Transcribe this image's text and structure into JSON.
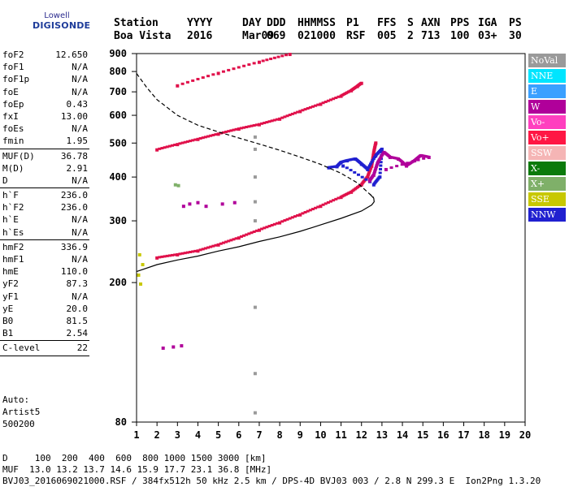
{
  "logo": {
    "line1": "Lowell",
    "line2": "DIGISONDE"
  },
  "header": {
    "cols": [
      {
        "label": "Station",
        "value": "Boa Vista"
      },
      {
        "label": "YYYY",
        "value": "2016"
      },
      {
        "label": "DAY",
        "value": "Mar09"
      },
      {
        "label": "DDD",
        "value": "069"
      },
      {
        "label": "HHMMSS",
        "value": "021000"
      },
      {
        "label": "P1",
        "value": "RSF"
      },
      {
        "label": "FFS",
        "value": "005"
      },
      {
        "label": "S",
        "value": "2"
      },
      {
        "label": "AXN",
        "value": "713"
      },
      {
        "label": "PPS",
        "value": "100"
      },
      {
        "label": "IGA",
        "value": "03+"
      },
      {
        "label": "PS",
        "value": "30"
      }
    ]
  },
  "params": {
    "group1": [
      {
        "name": "foF2",
        "value": "12.650"
      },
      {
        "name": "foF1",
        "value": "N/A"
      },
      {
        "name": "foF1p",
        "value": "N/A"
      },
      {
        "name": "foE",
        "value": "N/A"
      },
      {
        "name": "foEp",
        "value": "0.43"
      },
      {
        "name": "fxI",
        "value": "13.00"
      },
      {
        "name": "foEs",
        "value": "N/A"
      },
      {
        "name": "fmin",
        "value": "1.95"
      }
    ],
    "group2": [
      {
        "name": "MUF(D)",
        "value": "36.78"
      },
      {
        "name": "M(D)",
        "value": "2.91"
      },
      {
        "name": "D",
        "value": "N/A"
      }
    ],
    "group3": [
      {
        "name": "h`F",
        "value": "236.0"
      },
      {
        "name": "h`F2",
        "value": "236.0"
      },
      {
        "name": "h`E",
        "value": "N/A"
      },
      {
        "name": "h`Es",
        "value": "N/A"
      }
    ],
    "group4": [
      {
        "name": "hmF2",
        "value": "336.9"
      },
      {
        "name": "hmF1",
        "value": "N/A"
      },
      {
        "name": "hmE",
        "value": "110.0"
      },
      {
        "name": "yF2",
        "value": "87.3"
      },
      {
        "name": "yF1",
        "value": "N/A"
      },
      {
        "name": "yE",
        "value": "20.0"
      },
      {
        "name": "B0",
        "value": "81.5"
      },
      {
        "name": "B1",
        "value": "2.54"
      }
    ],
    "group5": [
      {
        "name": "C-level",
        "value": "22"
      }
    ]
  },
  "auto": {
    "line1": "Auto:",
    "line2": "Artist5",
    "line3": "500200"
  },
  "footer": {
    "d_line": "D     100  200  400  600  800 1000 1500 3000 [km]",
    "muf_line": "MUF  13.0 13.2 13.7 14.6 15.9 17.7 23.1 36.8 [MHz]",
    "file_line": "BVJ03_2016069021000.RSF / 384fx512h 50 kHz 2.5 km / DPS-4D BVJ03 003 / 2.8 N 299.3 E  Ion2Png 1.3.20"
  },
  "legend": [
    {
      "label": "NoVal",
      "color": "#9a9a9a"
    },
    {
      "label": "NNE",
      "color": "#00e5ff"
    },
    {
      "label": "E",
      "color": "#3aa0ff"
    },
    {
      "label": "W",
      "color": "#b0009a"
    },
    {
      "label": "Vo-",
      "color": "#ff3fbf"
    },
    {
      "label": "Vo+",
      "color": "#ff1744"
    },
    {
      "label": "SSW",
      "color": "#f5b5b5"
    },
    {
      "label": "X-",
      "color": "#0b7a0b"
    },
    {
      "label": "X+",
      "color": "#7fb069"
    },
    {
      "label": "SSE",
      "color": "#c8c800"
    },
    {
      "label": "NNW",
      "color": "#2020d0"
    }
  ],
  "chart_data": {
    "type": "scatter",
    "title": "",
    "xlabel": "",
    "ylabel": "",
    "x_range": [
      1,
      20
    ],
    "y_range": [
      80,
      900
    ],
    "y_scale": "log",
    "x_ticks": [
      1,
      2,
      3,
      4,
      5,
      6,
      7,
      8,
      9,
      10,
      11,
      12,
      13,
      14,
      15,
      16,
      17,
      18,
      19,
      20
    ],
    "y_ticks": [
      80,
      200,
      300,
      400,
      500,
      600,
      700,
      800,
      900
    ],
    "series": [
      {
        "color": "#e0104a",
        "points": [
          [
            2.0,
            235
          ],
          [
            3,
            240
          ],
          [
            4,
            246
          ],
          [
            5,
            256
          ],
          [
            6,
            268
          ],
          [
            7,
            282
          ],
          [
            8,
            296
          ],
          [
            9,
            312
          ],
          [
            10,
            330
          ],
          [
            11,
            350
          ],
          [
            11.5,
            362
          ],
          [
            12,
            380
          ],
          [
            12.3,
            400
          ],
          [
            12.5,
            430
          ],
          [
            12.6,
            470
          ],
          [
            12.7,
            500
          ]
        ]
      },
      {
        "color": "#e0104a",
        "points": [
          [
            2.0,
            478
          ],
          [
            3,
            495
          ],
          [
            4,
            512
          ],
          [
            5,
            530
          ],
          [
            6,
            548
          ],
          [
            7,
            564
          ],
          [
            8,
            585
          ],
          [
            9,
            615
          ],
          [
            10,
            645
          ],
          [
            11,
            680
          ],
          [
            11.5,
            705
          ],
          [
            11.8,
            725
          ],
          [
            12.0,
            740
          ]
        ]
      },
      {
        "color": "#e0104a",
        "points": [
          [
            3,
            728
          ],
          [
            5,
            790
          ],
          [
            7,
            850
          ],
          [
            8.5,
            895
          ]
        ]
      },
      {
        "color": "#9a9a9a",
        "points": [
          [
            6.8,
            300
          ],
          [
            6.8,
            340
          ],
          [
            6.8,
            400
          ],
          [
            6.8,
            480
          ],
          [
            6.8,
            520
          ],
          [
            6.8,
            170
          ],
          [
            6.8,
            110
          ],
          [
            6.8,
            85
          ]
        ]
      },
      {
        "color": "#b0009a",
        "points": [
          [
            3.3,
            330
          ],
          [
            3.6,
            335
          ],
          [
            4.0,
            338
          ],
          [
            4.4,
            330
          ],
          [
            5.2,
            335
          ],
          [
            5.8,
            338
          ]
        ]
      },
      {
        "color": "#b0009a",
        "points": [
          [
            2.3,
            130
          ],
          [
            2.8,
            131
          ],
          [
            3.2,
            132
          ]
        ]
      },
      {
        "color": "#2020d0",
        "points": [
          [
            10.4,
            425
          ],
          [
            10.8,
            428
          ],
          [
            11.0,
            440
          ],
          [
            11.3,
            445
          ],
          [
            11.7,
            450
          ],
          [
            12.0,
            435
          ],
          [
            12.3,
            420
          ],
          [
            12.7,
            460
          ],
          [
            13.0,
            480
          ],
          [
            12.9,
            400
          ],
          [
            12.6,
            380
          ],
          [
            11.1,
            430
          ]
        ]
      },
      {
        "color": "#b0009a",
        "points": [
          [
            12.4,
            390
          ],
          [
            12.6,
            405
          ],
          [
            12.8,
            440
          ],
          [
            13.1,
            470
          ],
          [
            13.4,
            455
          ],
          [
            13.8,
            450
          ],
          [
            14.2,
            430
          ],
          [
            14.6,
            445
          ],
          [
            14.9,
            460
          ],
          [
            15.3,
            455
          ],
          [
            13.2,
            420
          ]
        ]
      },
      {
        "color": "#7fb069",
        "points": [
          [
            2.9,
            380
          ],
          [
            3.05,
            378
          ]
        ]
      },
      {
        "color": "#c8c800",
        "points": [
          [
            1.1,
            210
          ],
          [
            1.2,
            198
          ],
          [
            1.3,
            225
          ],
          [
            1.15,
            240
          ]
        ]
      }
    ],
    "curves": [
      {
        "name": "profile",
        "style": "dashed",
        "points": [
          [
            1.0,
            790
          ],
          [
            1.5,
            720
          ],
          [
            2.0,
            665
          ],
          [
            3.0,
            600
          ],
          [
            4.0,
            562
          ],
          [
            5.0,
            538
          ],
          [
            6.0,
            517
          ],
          [
            7.0,
            497
          ],
          [
            8.0,
            477
          ],
          [
            9.0,
            456
          ],
          [
            10.0,
            435
          ],
          [
            11.0,
            410
          ],
          [
            11.8,
            385
          ],
          [
            12.35,
            360
          ],
          [
            12.6,
            350
          ]
        ]
      },
      {
        "name": "true-height",
        "style": "solid",
        "points": [
          [
            1.0,
            215
          ],
          [
            2.0,
            225
          ],
          [
            3.0,
            232
          ],
          [
            4.0,
            238
          ],
          [
            5.0,
            246
          ],
          [
            6.0,
            253
          ],
          [
            7.0,
            262
          ],
          [
            8.0,
            270
          ],
          [
            9.0,
            280
          ],
          [
            10.0,
            292
          ],
          [
            11.0,
            305
          ],
          [
            12.0,
            320
          ],
          [
            12.5,
            333
          ],
          [
            12.62,
            340
          ],
          [
            12.6,
            348
          ],
          [
            12.4,
            358
          ]
        ]
      }
    ],
    "grid": false
  }
}
